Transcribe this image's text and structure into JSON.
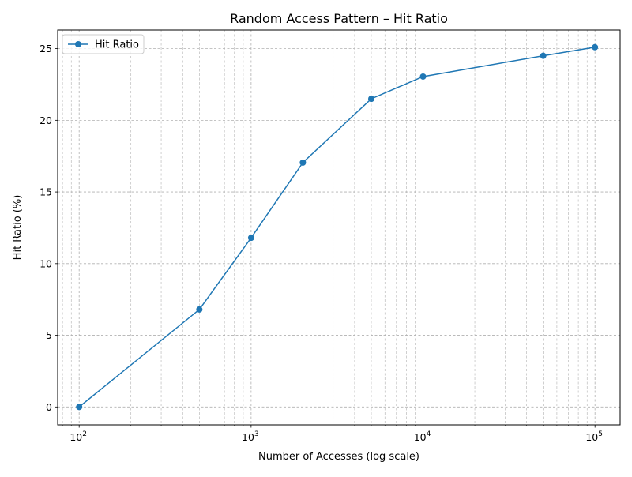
{
  "chart_data": {
    "type": "line",
    "title": "Random Access Pattern – Hit Ratio",
    "xlabel": "Number of Accesses (log scale)",
    "ylabel": "Hit Ratio (%)",
    "x_scale": "log",
    "xlim": [
      75,
      140000
    ],
    "ylim": [
      -1.25,
      26.3
    ],
    "x_ticks": [
      100,
      1000,
      10000,
      100000
    ],
    "x_tick_labels": [
      {
        "base": "10",
        "exp": "2"
      },
      {
        "base": "10",
        "exp": "3"
      },
      {
        "base": "10",
        "exp": "4"
      },
      {
        "base": "10",
        "exp": "5"
      }
    ],
    "y_ticks": [
      0,
      5,
      10,
      15,
      20,
      25
    ],
    "y_tick_labels": [
      "0",
      "5",
      "10",
      "15",
      "20",
      "25"
    ],
    "grid": true,
    "legend": "top-left",
    "series": [
      {
        "name": "Hit Ratio",
        "color": "#1f77b4",
        "marker": "circle",
        "x": [
          100,
          500,
          1000,
          2000,
          5000,
          10000,
          50000,
          100000
        ],
        "y": [
          0.0,
          6.8,
          11.8,
          17.05,
          21.5,
          23.05,
          24.5,
          25.1
        ]
      }
    ]
  }
}
